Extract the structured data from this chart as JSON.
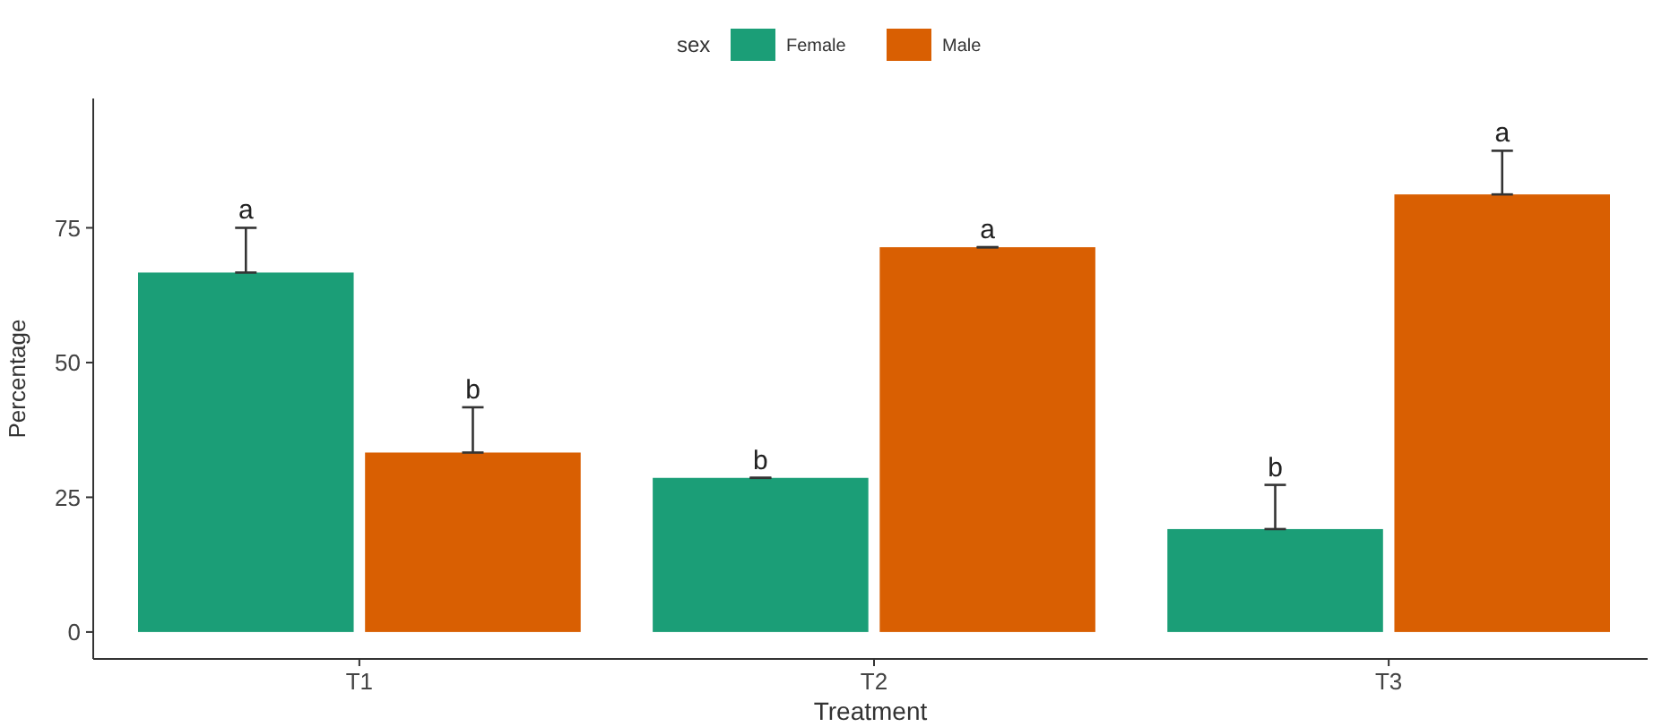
{
  "chart_data": {
    "type": "bar",
    "xlabel": "Treatment",
    "ylabel": "Percentage",
    "legend_title": "sex",
    "legend": "top",
    "grid": false,
    "categories": [
      "T1",
      "T2",
      "T3"
    ],
    "ylim": [
      -5,
      99
    ],
    "yticks": [
      0,
      25,
      50,
      75
    ],
    "series": [
      {
        "name": "Female",
        "color": "#1b9e77",
        "values": [
          66.7,
          28.6,
          19.1
        ],
        "errors": [
          [
            66.7,
            75
          ],
          [
            28.6,
            28.6
          ],
          [
            19.1,
            27.3
          ]
        ],
        "value_labels": [
          "a",
          "b",
          "b"
        ]
      },
      {
        "name": "Male",
        "color": "#d95f02",
        "values": [
          33.3,
          71.4,
          81.2
        ],
        "errors": [
          [
            33.3,
            41.7
          ],
          [
            71.4,
            71.4
          ],
          [
            81.2,
            89.3
          ]
        ],
        "value_labels": [
          "b",
          "a",
          "a"
        ]
      }
    ]
  }
}
